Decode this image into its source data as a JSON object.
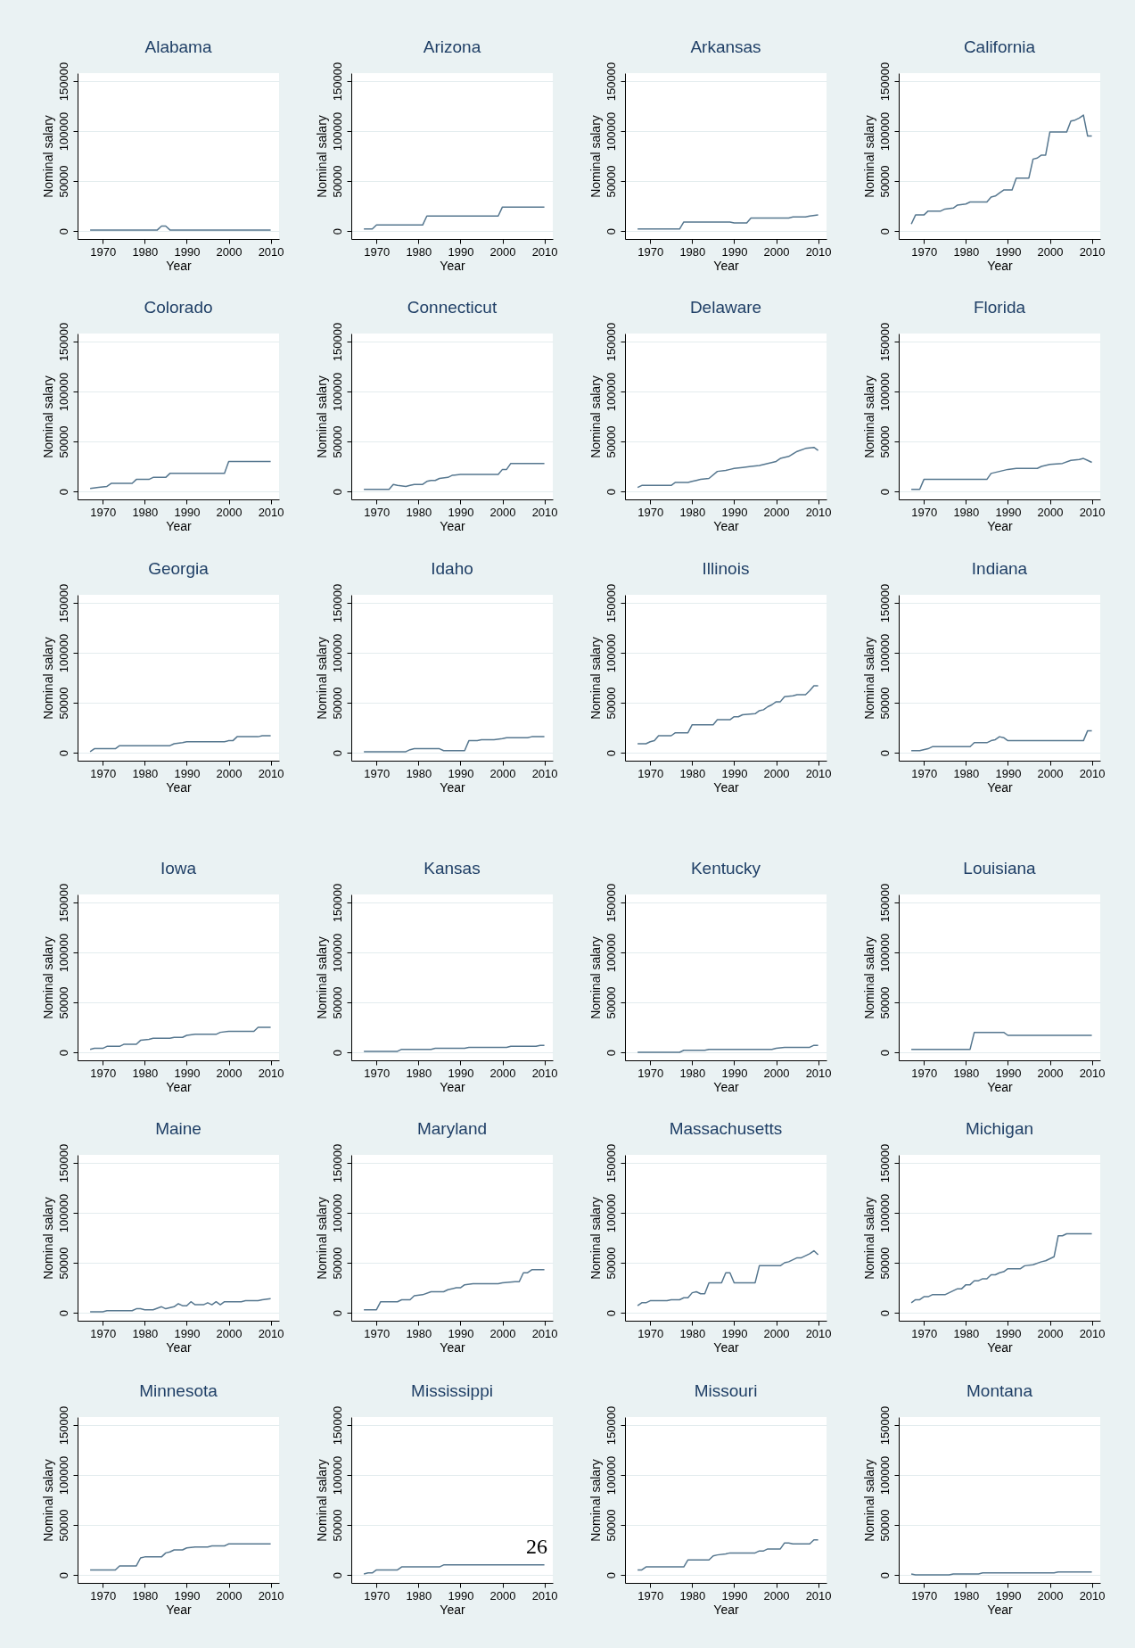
{
  "chart_data": [
    {
      "type": "line",
      "title": "Alabama",
      "xlabel": "Year",
      "ylabel": "Nominal salary",
      "color": "#56778f",
      "xlim": [
        1964,
        2012
      ],
      "xticks": [
        1970,
        1980,
        1990,
        2000,
        2010
      ],
      "ylim": [
        -8000,
        158000
      ],
      "yticks": [
        0,
        50000,
        100000,
        150000
      ],
      "grid": "y",
      "x": [
        1967,
        1983,
        1984,
        1985,
        1986,
        2010
      ],
      "values": [
        1000,
        1000,
        5000,
        5000,
        1000,
        1000
      ]
    },
    {
      "type": "line",
      "title": "Arizona",
      "xlabel": "Year",
      "ylabel": "Nominal salary",
      "color": "#56778f",
      "xlim": [
        1964,
        2012
      ],
      "xticks": [
        1970,
        1980,
        1990,
        2000,
        2010
      ],
      "ylim": [
        -8000,
        158000
      ],
      "yticks": [
        0,
        50000,
        100000,
        150000
      ],
      "grid": "y",
      "x": [
        1967,
        1969,
        1970,
        1981,
        1982,
        1999,
        2000,
        2010
      ],
      "values": [
        2000,
        2000,
        6000,
        6000,
        15000,
        15000,
        24000,
        24000
      ]
    },
    {
      "type": "line",
      "title": "Arkansas",
      "xlabel": "Year",
      "ylabel": "Nominal salary",
      "color": "#56778f",
      "xlim": [
        1964,
        2012
      ],
      "xticks": [
        1970,
        1980,
        1990,
        2000,
        2010
      ],
      "ylim": [
        -8000,
        158000
      ],
      "yticks": [
        0,
        50000,
        100000,
        150000
      ],
      "grid": "y",
      "x": [
        1967,
        1977,
        1978,
        1989,
        1990,
        1993,
        1994,
        2003,
        2004,
        2007,
        2008,
        2010
      ],
      "values": [
        2000,
        2000,
        9000,
        9000,
        8000,
        8000,
        13000,
        13000,
        14000,
        14000,
        15000,
        16000
      ]
    },
    {
      "type": "line",
      "title": "California",
      "xlabel": "Year",
      "ylabel": "Nominal salary",
      "color": "#56778f",
      "xlim": [
        1964,
        2012
      ],
      "xticks": [
        1970,
        1980,
        1990,
        2000,
        2010
      ],
      "ylim": [
        -8000,
        158000
      ],
      "yticks": [
        0,
        50000,
        100000,
        150000
      ],
      "grid": "y",
      "x": [
        1967,
        1968,
        1970,
        1971,
        1974,
        1975,
        1977,
        1978,
        1980,
        1981,
        1985,
        1986,
        1987,
        1988,
        1989,
        1991,
        1992,
        1995,
        1996,
        1997,
        1998,
        1999,
        2000,
        2004,
        2005,
        2006,
        2007,
        2008,
        2009,
        2010
      ],
      "values": [
        7000,
        16000,
        16000,
        20000,
        20000,
        22000,
        23000,
        26000,
        27000,
        29000,
        29000,
        34000,
        35000,
        38000,
        41000,
        41000,
        53000,
        53000,
        72000,
        73000,
        76000,
        76000,
        99000,
        99000,
        110000,
        111000,
        113000,
        116000,
        95000,
        95000
      ]
    },
    {
      "type": "line",
      "title": "Colorado",
      "xlabel": "Year",
      "ylabel": "Nominal salary",
      "color": "#56778f",
      "xlim": [
        1964,
        2012
      ],
      "xticks": [
        1970,
        1980,
        1990,
        2000,
        2010
      ],
      "ylim": [
        -8000,
        158000
      ],
      "yticks": [
        0,
        50000,
        100000,
        150000
      ],
      "grid": "y",
      "x": [
        1967,
        1969,
        1971,
        1972,
        1977,
        1978,
        1981,
        1982,
        1985,
        1986,
        1999,
        2000,
        2010
      ],
      "values": [
        3000,
        4000,
        5000,
        8000,
        8000,
        12000,
        12000,
        14000,
        14000,
        18000,
        18000,
        30000,
        30000
      ]
    },
    {
      "type": "line",
      "title": "Connecticut",
      "xlabel": "Year",
      "ylabel": "Nominal salary",
      "color": "#56778f",
      "xlim": [
        1964,
        2012
      ],
      "xticks": [
        1970,
        1980,
        1990,
        2000,
        2010
      ],
      "ylim": [
        -8000,
        158000
      ],
      "yticks": [
        0,
        50000,
        100000,
        150000
      ],
      "grid": "y",
      "x": [
        1967,
        1973,
        1974,
        1975,
        1977,
        1978,
        1979,
        1981,
        1982,
        1983,
        1984,
        1985,
        1987,
        1988,
        1990,
        1999,
        2000,
        2001,
        2002,
        2010
      ],
      "values": [
        2000,
        2000,
        7000,
        6000,
        5000,
        6000,
        7000,
        7000,
        10000,
        11000,
        11000,
        13000,
        14000,
        16000,
        17000,
        17000,
        22000,
        22000,
        28000,
        28000
      ]
    },
    {
      "type": "line",
      "title": "Delaware",
      "xlabel": "Year",
      "ylabel": "Nominal salary",
      "color": "#56778f",
      "xlim": [
        1964,
        2012
      ],
      "xticks": [
        1970,
        1980,
        1990,
        2000,
        2010
      ],
      "ylim": [
        -8000,
        158000
      ],
      "yticks": [
        0,
        50000,
        100000,
        150000
      ],
      "grid": "y",
      "x": [
        1967,
        1968,
        1975,
        1976,
        1979,
        1980,
        1981,
        1982,
        1984,
        1986,
        1988,
        1989,
        1990,
        1992,
        1994,
        1996,
        1998,
        2000,
        2001,
        2003,
        2005,
        2007,
        2009,
        2010
      ],
      "values": [
        4000,
        6000,
        6000,
        9000,
        9000,
        10000,
        11000,
        12000,
        13000,
        20000,
        21000,
        22000,
        23000,
        24000,
        25000,
        26000,
        28000,
        30000,
        33000,
        35000,
        40000,
        43000,
        44000,
        41000
      ]
    },
    {
      "type": "line",
      "title": "Florida",
      "xlabel": "Year",
      "ylabel": "Nominal salary",
      "color": "#56778f",
      "xlim": [
        1964,
        2012
      ],
      "xticks": [
        1970,
        1980,
        1990,
        2000,
        2010
      ],
      "ylim": [
        -8000,
        158000
      ],
      "yticks": [
        0,
        50000,
        100000,
        150000
      ],
      "grid": "y",
      "x": [
        1967,
        1969,
        1970,
        1985,
        1986,
        1988,
        1990,
        1992,
        1997,
        1998,
        2000,
        2003,
        2005,
        2007,
        2008,
        2009,
        2010
      ],
      "values": [
        2000,
        2000,
        12000,
        12000,
        18000,
        20000,
        22000,
        23000,
        23000,
        25000,
        27000,
        28000,
        31000,
        32000,
        33000,
        31000,
        29000
      ]
    },
    {
      "type": "line",
      "title": "Georgia",
      "xlabel": "Year",
      "ylabel": "Nominal salary",
      "color": "#56778f",
      "xlim": [
        1964,
        2012
      ],
      "xticks": [
        1970,
        1980,
        1990,
        2000,
        2010
      ],
      "ylim": [
        -8000,
        158000
      ],
      "yticks": [
        0,
        50000,
        100000,
        150000
      ],
      "grid": "y",
      "x": [
        1967,
        1968,
        1973,
        1974,
        1986,
        1987,
        1989,
        1990,
        1999,
        2000,
        2001,
        2002,
        2007,
        2008,
        2010
      ],
      "values": [
        1000,
        4000,
        4000,
        7000,
        7000,
        9000,
        10000,
        11000,
        11000,
        12000,
        12000,
        16000,
        16000,
        17000,
        17000
      ]
    },
    {
      "type": "line",
      "title": "Idaho",
      "xlabel": "Year",
      "ylabel": "Nominal salary",
      "color": "#56778f",
      "xlim": [
        1964,
        2012
      ],
      "xticks": [
        1970,
        1980,
        1990,
        2000,
        2010
      ],
      "ylim": [
        -8000,
        158000
      ],
      "yticks": [
        0,
        50000,
        100000,
        150000
      ],
      "grid": "y",
      "x": [
        1967,
        1977,
        1978,
        1979,
        1985,
        1986,
        1991,
        1992,
        1994,
        1995,
        1998,
        2000,
        2001,
        2006,
        2007,
        2010
      ],
      "values": [
        1000,
        1000,
        3000,
        4000,
        4000,
        2000,
        2000,
        12000,
        12000,
        13000,
        13000,
        14000,
        15000,
        15000,
        16000,
        16000
      ]
    },
    {
      "type": "line",
      "title": "Illinois",
      "xlabel": "Year",
      "ylabel": "Nominal salary",
      "color": "#56778f",
      "xlim": [
        1964,
        2012
      ],
      "xticks": [
        1970,
        1980,
        1990,
        2000,
        2010
      ],
      "ylim": [
        -8000,
        158000
      ],
      "yticks": [
        0,
        50000,
        100000,
        150000
      ],
      "grid": "y",
      "x": [
        1967,
        1969,
        1970,
        1971,
        1972,
        1975,
        1976,
        1979,
        1980,
        1985,
        1986,
        1989,
        1990,
        1991,
        1992,
        1995,
        1996,
        1997,
        1998,
        1999,
        2000,
        2001,
        2002,
        2004,
        2005,
        2007,
        2008,
        2009,
        2010
      ],
      "values": [
        9000,
        9000,
        11000,
        12000,
        17000,
        17000,
        20000,
        20000,
        28000,
        28000,
        33000,
        33000,
        36000,
        36000,
        38000,
        39000,
        42000,
        43000,
        46000,
        48000,
        51000,
        51000,
        56000,
        57000,
        58000,
        58000,
        62000,
        67000,
        67000
      ]
    },
    {
      "type": "line",
      "title": "Indiana",
      "xlabel": "Year",
      "ylabel": "Nominal salary",
      "color": "#56778f",
      "xlim": [
        1964,
        2012
      ],
      "xticks": [
        1970,
        1980,
        1990,
        2000,
        2010
      ],
      "ylim": [
        -8000,
        158000
      ],
      "yticks": [
        0,
        50000,
        100000,
        150000
      ],
      "grid": "y",
      "x": [
        1967,
        1969,
        1971,
        1972,
        1981,
        1982,
        1985,
        1986,
        1987,
        1988,
        1989,
        1990,
        2008,
        2009,
        2010
      ],
      "values": [
        2000,
        2000,
        4000,
        6000,
        6000,
        10000,
        10000,
        12000,
        13000,
        16000,
        15000,
        12000,
        12000,
        22000,
        22000
      ]
    },
    {
      "type": "line",
      "title": "Iowa",
      "xlabel": "Year",
      "ylabel": "Nominal salary",
      "color": "#56778f",
      "xlim": [
        1964,
        2012
      ],
      "xticks": [
        1970,
        1980,
        1990,
        2000,
        2010
      ],
      "ylim": [
        -8000,
        158000
      ],
      "yticks": [
        0,
        50000,
        100000,
        150000
      ],
      "grid": "y",
      "x": [
        1967,
        1968,
        1970,
        1971,
        1974,
        1975,
        1978,
        1979,
        1981,
        1982,
        1986,
        1987,
        1989,
        1990,
        1992,
        1997,
        1998,
        2000,
        2006,
        2007,
        2010
      ],
      "values": [
        3000,
        4000,
        4000,
        6000,
        6000,
        8000,
        8000,
        12000,
        13000,
        14000,
        14000,
        15000,
        15000,
        17000,
        18000,
        18000,
        20000,
        21000,
        21000,
        25000,
        25000
      ]
    },
    {
      "type": "line",
      "title": "Kansas",
      "xlabel": "Year",
      "ylabel": "Nominal salary",
      "color": "#56778f",
      "xlim": [
        1964,
        2012
      ],
      "xticks": [
        1970,
        1980,
        1990,
        2000,
        2010
      ],
      "ylim": [
        -8000,
        158000
      ],
      "yticks": [
        0,
        50000,
        100000,
        150000
      ],
      "grid": "y",
      "x": [
        1967,
        1975,
        1976,
        1983,
        1984,
        1991,
        1992,
        2001,
        2002,
        2008,
        2009,
        2010
      ],
      "values": [
        1000,
        1000,
        3000,
        3000,
        4000,
        4000,
        5000,
        5000,
        6000,
        6000,
        7000,
        7000
      ]
    },
    {
      "type": "line",
      "title": "Kentucky",
      "xlabel": "Year",
      "ylabel": "Nominal salary",
      "color": "#56778f",
      "xlim": [
        1964,
        2012
      ],
      "xticks": [
        1970,
        1980,
        1990,
        2000,
        2010
      ],
      "ylim": [
        -8000,
        158000
      ],
      "yticks": [
        0,
        50000,
        100000,
        150000
      ],
      "grid": "y",
      "x": [
        1967,
        1977,
        1978,
        1983,
        1984,
        1999,
        2000,
        2002,
        2008,
        2009,
        2010
      ],
      "values": [
        0,
        0,
        2000,
        2000,
        3000,
        3000,
        4000,
        5000,
        5000,
        7000,
        7000
      ]
    },
    {
      "type": "line",
      "title": "Louisiana",
      "xlabel": "Year",
      "ylabel": "Nominal salary",
      "color": "#56778f",
      "xlim": [
        1964,
        2012
      ],
      "xticks": [
        1970,
        1980,
        1990,
        2000,
        2010
      ],
      "ylim": [
        -8000,
        158000
      ],
      "yticks": [
        0,
        50000,
        100000,
        150000
      ],
      "grid": "y",
      "x": [
        1967,
        1981,
        1982,
        1989,
        1990,
        2010
      ],
      "values": [
        3000,
        3000,
        20000,
        20000,
        17000,
        17000
      ]
    },
    {
      "type": "line",
      "title": "Maine",
      "xlabel": "Year",
      "ylabel": "Nominal salary",
      "color": "#56778f",
      "xlim": [
        1964,
        2012
      ],
      "xticks": [
        1970,
        1980,
        1990,
        2000,
        2010
      ],
      "ylim": [
        -8000,
        158000
      ],
      "yticks": [
        0,
        50000,
        100000,
        150000
      ],
      "grid": "y",
      "x": [
        1967,
        1970,
        1971,
        1977,
        1978,
        1979,
        1980,
        1982,
        1984,
        1985,
        1987,
        1988,
        1989,
        1990,
        1991,
        1992,
        1994,
        1995,
        1996,
        1997,
        1998,
        1999,
        2003,
        2004,
        2007,
        2008,
        2010
      ],
      "values": [
        1000,
        1000,
        2000,
        2000,
        4000,
        4000,
        3000,
        3000,
        6000,
        4000,
        6000,
        9000,
        7000,
        7000,
        11000,
        8000,
        8000,
        10000,
        8000,
        11000,
        8000,
        11000,
        11000,
        12000,
        12000,
        13000,
        14000
      ]
    },
    {
      "type": "line",
      "title": "Maryland",
      "xlabel": "Year",
      "ylabel": "Nominal salary",
      "color": "#56778f",
      "xlim": [
        1964,
        2012
      ],
      "xticks": [
        1970,
        1980,
        1990,
        2000,
        2010
      ],
      "ylim": [
        -8000,
        158000
      ],
      "yticks": [
        0,
        50000,
        100000,
        150000
      ],
      "grid": "y",
      "x": [
        1967,
        1970,
        1971,
        1975,
        1976,
        1978,
        1979,
        1981,
        1983,
        1986,
        1987,
        1989,
        1990,
        1991,
        1993,
        1999,
        2000,
        2003,
        2004,
        2005,
        2006,
        2007,
        2010
      ],
      "values": [
        3000,
        3000,
        11000,
        11000,
        13000,
        13000,
        17000,
        18000,
        21000,
        21000,
        23000,
        25000,
        25000,
        28000,
        29000,
        29000,
        30000,
        31000,
        31000,
        40000,
        40000,
        43000,
        43000
      ]
    },
    {
      "type": "line",
      "title": "Massachusetts",
      "xlabel": "Year",
      "ylabel": "Nominal salary",
      "color": "#56778f",
      "xlim": [
        1964,
        2012
      ],
      "xticks": [
        1970,
        1980,
        1990,
        2000,
        2010
      ],
      "ylim": [
        -8000,
        158000
      ],
      "yticks": [
        0,
        50000,
        100000,
        150000
      ],
      "grid": "y",
      "x": [
        1967,
        1968,
        1969,
        1970,
        1974,
        1975,
        1977,
        1978,
        1979,
        1980,
        1981,
        1982,
        1983,
        1984,
        1987,
        1988,
        1989,
        1990,
        1995,
        1996,
        2001,
        2002,
        2003,
        2005,
        2006,
        2008,
        2009,
        2010
      ],
      "values": [
        7000,
        10000,
        10000,
        12000,
        12000,
        13000,
        13000,
        15000,
        15000,
        20000,
        21000,
        19000,
        19000,
        30000,
        30000,
        40000,
        40000,
        30000,
        30000,
        47000,
        47000,
        50000,
        51000,
        55000,
        55000,
        59000,
        62000,
        58000
      ]
    },
    {
      "type": "line",
      "title": "Michigan",
      "xlabel": "Year",
      "ylabel": "Nominal salary",
      "color": "#56778f",
      "xlim": [
        1964,
        2012
      ],
      "xticks": [
        1970,
        1980,
        1990,
        2000,
        2010
      ],
      "ylim": [
        -8000,
        158000
      ],
      "yticks": [
        0,
        50000,
        100000,
        150000
      ],
      "grid": "y",
      "x": [
        1967,
        1968,
        1969,
        1970,
        1971,
        1972,
        1975,
        1976,
        1977,
        1978,
        1979,
        1980,
        1981,
        1982,
        1983,
        1984,
        1985,
        1986,
        1987,
        1988,
        1989,
        1990,
        1993,
        1994,
        1996,
        1998,
        1999,
        2000,
        2001,
        2002,
        2003,
        2004,
        2010
      ],
      "values": [
        10000,
        13000,
        13000,
        16000,
        16000,
        18000,
        18000,
        20000,
        22000,
        24000,
        24000,
        28000,
        28000,
        32000,
        32000,
        34000,
        34000,
        38000,
        38000,
        40000,
        41000,
        44000,
        44000,
        47000,
        48000,
        51000,
        52000,
        54000,
        56000,
        77000,
        77000,
        79000,
        79000
      ]
    },
    {
      "type": "line",
      "title": "Minnesota",
      "xlabel": "Year",
      "ylabel": "Nominal salary",
      "color": "#56778f",
      "xlim": [
        1964,
        2012
      ],
      "xticks": [
        1970,
        1980,
        1990,
        2000,
        2010
      ],
      "ylim": [
        -8000,
        158000
      ],
      "yticks": [
        0,
        50000,
        100000,
        150000
      ],
      "grid": "y",
      "x": [
        1967,
        1973,
        1974,
        1978,
        1979,
        1980,
        1984,
        1985,
        1986,
        1987,
        1989,
        1990,
        1992,
        1995,
        1996,
        1999,
        2000,
        2010
      ],
      "values": [
        5000,
        5000,
        9000,
        9000,
        17000,
        18000,
        18000,
        22000,
        23000,
        25000,
        25000,
        27000,
        28000,
        28000,
        29000,
        29000,
        31000,
        31000
      ]
    },
    {
      "type": "line",
      "title": "Mississippi",
      "xlabel": "Year",
      "ylabel": "Nominal salary",
      "color": "#56778f",
      "xlim": [
        1964,
        2012
      ],
      "xticks": [
        1970,
        1980,
        1990,
        2000,
        2010
      ],
      "ylim": [
        -8000,
        158000
      ],
      "yticks": [
        0,
        50000,
        100000,
        150000
      ],
      "grid": "y",
      "x": [
        1967,
        1968,
        1969,
        1970,
        1975,
        1976,
        1985,
        1986,
        2010
      ],
      "values": [
        1000,
        2000,
        2000,
        5000,
        5000,
        8000,
        8000,
        10000,
        10000
      ],
      "annotations": [
        "26"
      ]
    },
    {
      "type": "line",
      "title": "Missouri",
      "xlabel": "Year",
      "ylabel": "Nominal salary",
      "color": "#56778f",
      "xlim": [
        1964,
        2012
      ],
      "xticks": [
        1970,
        1980,
        1990,
        2000,
        2010
      ],
      "ylim": [
        -8000,
        158000
      ],
      "yticks": [
        0,
        50000,
        100000,
        150000
      ],
      "grid": "y",
      "x": [
        1967,
        1968,
        1969,
        1978,
        1979,
        1984,
        1985,
        1986,
        1988,
        1989,
        1995,
        1996,
        1997,
        1998,
        2001,
        2002,
        2003,
        2004,
        2008,
        2009,
        2010
      ],
      "values": [
        5000,
        5000,
        8000,
        8000,
        15000,
        15000,
        19000,
        20000,
        21000,
        22000,
        22000,
        24000,
        24000,
        26000,
        26000,
        32000,
        32000,
        31000,
        31000,
        35000,
        35000
      ]
    },
    {
      "type": "line",
      "title": "Montana",
      "xlabel": "Year",
      "ylabel": "Nominal salary",
      "color": "#56778f",
      "xlim": [
        1964,
        2012
      ],
      "xticks": [
        1970,
        1980,
        1990,
        2000,
        2010
      ],
      "ylim": [
        -8000,
        158000
      ],
      "yticks": [
        0,
        50000,
        100000,
        150000
      ],
      "grid": "y",
      "x": [
        1967,
        1968,
        1976,
        1977,
        1983,
        1984,
        2001,
        2002,
        2010
      ],
      "values": [
        1000,
        0,
        0,
        1000,
        1000,
        2000,
        2000,
        3000,
        3000
      ]
    }
  ]
}
